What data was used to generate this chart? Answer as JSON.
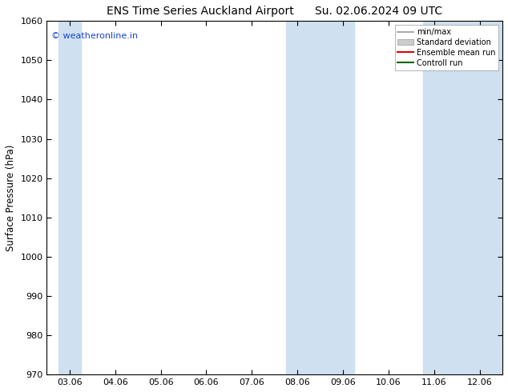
{
  "title": "ENS Time Series Auckland Airport      Su. 02.06.2024 09 UTC",
  "ylabel": "Surface Pressure (hPa)",
  "ylim": [
    970,
    1060
  ],
  "yticks": [
    970,
    980,
    990,
    1000,
    1010,
    1020,
    1030,
    1040,
    1050,
    1060
  ],
  "x_labels": [
    "03.06",
    "04.06",
    "05.06",
    "06.06",
    "07.06",
    "08.06",
    "09.06",
    "10.06",
    "11.06",
    "12.06"
  ],
  "x_positions": [
    0,
    1,
    2,
    3,
    4,
    5,
    6,
    7,
    8,
    9
  ],
  "xlim": [
    -0.5,
    9.5
  ],
  "shaded_bands": [
    {
      "x_start": -0.25,
      "x_end": 0.25
    },
    {
      "x_start": 4.75,
      "x_end": 6.25
    },
    {
      "x_start": 7.75,
      "x_end": 9.5
    }
  ],
  "shade_color": "#cfe0f0",
  "watermark": "© weatheronline.in",
  "watermark_color": "#1a44cc",
  "legend_items": [
    {
      "label": "min/max",
      "color": "#999999",
      "lw": 1.2,
      "type": "line"
    },
    {
      "label": "Standard deviation",
      "color": "#cccccc",
      "lw": 8,
      "type": "band"
    },
    {
      "label": "Ensemble mean run",
      "color": "#dd0000",
      "lw": 1.5,
      "type": "line"
    },
    {
      "label": "Controll run",
      "color": "#006600",
      "lw": 1.5,
      "type": "line"
    }
  ],
  "background_color": "#ffffff",
  "plot_bg_color": "#ffffff",
  "title_fontsize": 10,
  "tick_fontsize": 8,
  "ylabel_fontsize": 8.5,
  "watermark_fontsize": 8
}
